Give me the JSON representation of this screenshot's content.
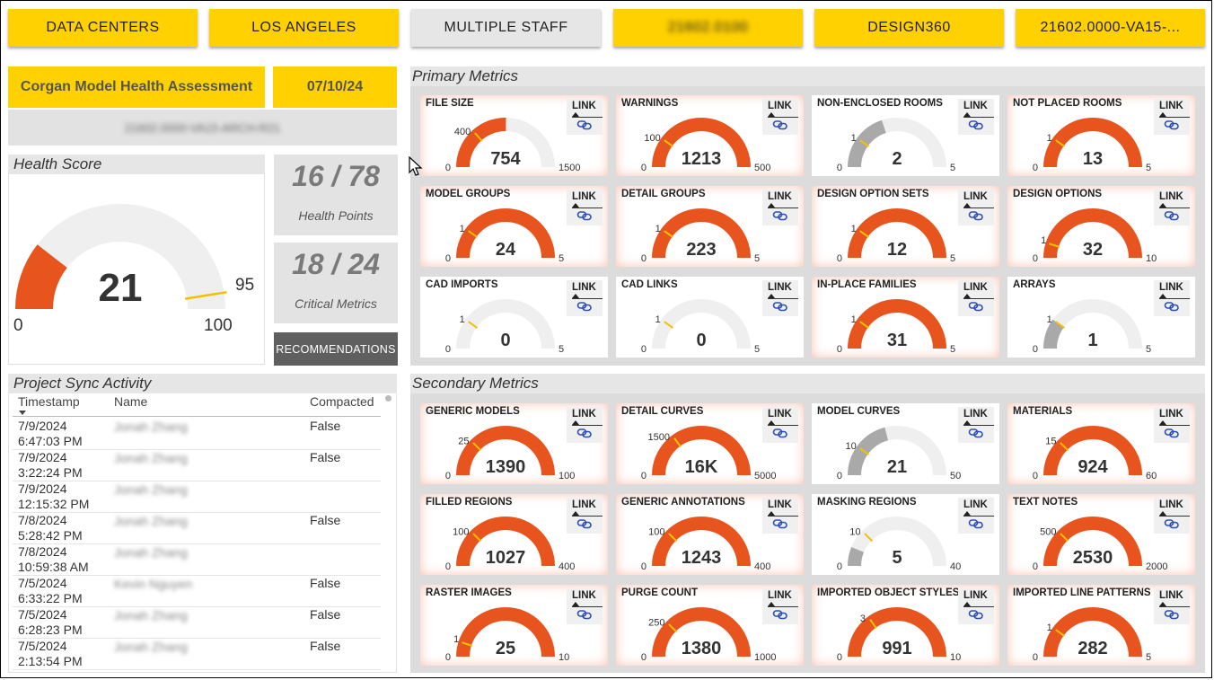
{
  "topbar": [
    "DATA CENTERS",
    "LOS ANGELES",
    "MULTIPLE STAFF",
    "21602.0100",
    "DESIGN360",
    "21602.0000-VA15-..."
  ],
  "header": {
    "title": "Corgan Model Health Assessment",
    "date": "07/10/24",
    "model_name": "21602.0000-VA15-ARCH-R21"
  },
  "health": {
    "title": "Health Score",
    "score": 21,
    "min": "0",
    "max": "100",
    "target": "95",
    "target_value": 95,
    "score_value": 21,
    "health_points": "16 / 78",
    "health_points_label": "Health Points",
    "critical": "18 / 24",
    "critical_label": "Critical Metrics",
    "recommendations": "RECOMMENDATIONS"
  },
  "sync": {
    "title": "Project Sync Activity",
    "columns": [
      "Timestamp",
      "Name",
      "Compacted"
    ],
    "rows": [
      {
        "date": "7/9/2024",
        "time": "6:47:03 PM",
        "name": "Jonah Zhang",
        "compacted": "False"
      },
      {
        "date": "7/9/2024",
        "time": "3:22:24 PM",
        "name": "Jonah Zhang",
        "compacted": "False"
      },
      {
        "date": "7/9/2024",
        "time": "12:15:32 PM",
        "name": "Jonah Zhang",
        "compacted": ""
      },
      {
        "date": "7/8/2024",
        "time": "5:28:42 PM",
        "name": "Jonah Zhang",
        "compacted": "False"
      },
      {
        "date": "7/8/2024",
        "time": "10:59:38 AM",
        "name": "Jonah Zhang",
        "compacted": ""
      },
      {
        "date": "7/5/2024",
        "time": "6:33:22 PM",
        "name": "Kevin Nguyen",
        "compacted": "False"
      },
      {
        "date": "7/5/2024",
        "time": "6:28:23 PM",
        "name": "Jonah Zhang",
        "compacted": "False"
      },
      {
        "date": "7/5/2024",
        "time": "2:13:54 PM",
        "name": "Jonah Zhang",
        "compacted": "False"
      }
    ]
  },
  "link_label": "LINK",
  "primary": {
    "title": "Primary Metrics",
    "metrics": [
      {
        "name": "FILE SIZE",
        "value": "754",
        "v": 754,
        "max": "1500",
        "m": 1500,
        "target": "400",
        "t": 400,
        "status": "fail"
      },
      {
        "name": "WARNINGS",
        "value": "1213",
        "v": 1213,
        "max": "500",
        "m": 500,
        "target": "100",
        "t": 100,
        "status": "fail"
      },
      {
        "name": "NON-ENCLOSED ROOMS",
        "value": "2",
        "v": 2,
        "max": "5",
        "m": 5,
        "target": "1",
        "t": 1,
        "status": "warn"
      },
      {
        "name": "NOT PLACED ROOMS",
        "value": "13",
        "v": 13,
        "max": "5",
        "m": 5,
        "target": "1",
        "t": 1,
        "status": "fail"
      },
      {
        "name": "MODEL GROUPS",
        "value": "24",
        "v": 24,
        "max": "5",
        "m": 5,
        "target": "1",
        "t": 1,
        "status": "fail"
      },
      {
        "name": "DETAIL GROUPS",
        "value": "223",
        "v": 223,
        "max": "5",
        "m": 5,
        "target": "1",
        "t": 1,
        "status": "fail"
      },
      {
        "name": "DESIGN OPTION SETS",
        "value": "12",
        "v": 12,
        "max": "5",
        "m": 5,
        "target": "1",
        "t": 1,
        "status": "fail"
      },
      {
        "name": "DESIGN OPTIONS",
        "value": "32",
        "v": 32,
        "max": "10",
        "m": 10,
        "target": "1",
        "t": 1,
        "status": "fail"
      },
      {
        "name": "CAD IMPORTS",
        "value": "0",
        "v": 0,
        "max": "5",
        "m": 5,
        "target": "1",
        "t": 1,
        "status": "ok"
      },
      {
        "name": "CAD LINKS",
        "value": "0",
        "v": 0,
        "max": "5",
        "m": 5,
        "target": "1",
        "t": 1,
        "status": "ok"
      },
      {
        "name": "IN-PLACE FAMILIES",
        "value": "31",
        "v": 31,
        "max": "5",
        "m": 5,
        "target": "1",
        "t": 1,
        "status": "fail"
      },
      {
        "name": "ARRAYS",
        "value": "1",
        "v": 1,
        "max": "5",
        "m": 5,
        "target": "1",
        "t": 1,
        "status": "warn"
      }
    ]
  },
  "secondary": {
    "title": "Secondary Metrics",
    "metrics": [
      {
        "name": "GENERIC MODELS",
        "value": "1390",
        "v": 1390,
        "max": "100",
        "m": 100,
        "target": "25",
        "t": 25,
        "status": "fail"
      },
      {
        "name": "DETAIL CURVES",
        "value": "16K",
        "v": 16000,
        "max": "5000",
        "m": 5000,
        "target": "1500",
        "t": 1500,
        "status": "fail"
      },
      {
        "name": "MODEL CURVES",
        "value": "21",
        "v": 21,
        "max": "50",
        "m": 50,
        "target": "10",
        "t": 10,
        "status": "warn"
      },
      {
        "name": "MATERIALS",
        "value": "924",
        "v": 924,
        "max": "60",
        "m": 60,
        "target": "15",
        "t": 15,
        "status": "fail"
      },
      {
        "name": "FILLED REGIONS",
        "value": "1027",
        "v": 1027,
        "max": "400",
        "m": 400,
        "target": "100",
        "t": 100,
        "status": "fail"
      },
      {
        "name": "GENERIC ANNOTATIONS",
        "value": "1243",
        "v": 1243,
        "max": "400",
        "m": 400,
        "target": "100",
        "t": 100,
        "status": "fail"
      },
      {
        "name": "MASKING REGIONS",
        "value": "5",
        "v": 5,
        "max": "40",
        "m": 40,
        "target": "10",
        "t": 10,
        "status": "warn"
      },
      {
        "name": "TEXT NOTES",
        "value": "2530",
        "v": 2530,
        "max": "2000",
        "m": 2000,
        "target": "500",
        "t": 500,
        "status": "fail"
      },
      {
        "name": "RASTER IMAGES",
        "value": "25",
        "v": 25,
        "max": "10",
        "m": 10,
        "target": "1",
        "t": 1,
        "status": "fail"
      },
      {
        "name": "PURGE COUNT",
        "value": "1380",
        "v": 1380,
        "max": "1000",
        "m": 1000,
        "target": "250",
        "t": 250,
        "status": "fail"
      },
      {
        "name": "IMPORTED OBJECT STYLES",
        "value": "991",
        "v": 991,
        "max": "10",
        "m": 10,
        "target": "3",
        "t": 3,
        "status": "fail"
      },
      {
        "name": "IMPORTED LINE PATTERNS",
        "value": "282",
        "v": 282,
        "max": "5",
        "m": 5,
        "target": "1",
        "t": 1,
        "status": "fail"
      }
    ]
  },
  "colors": {
    "yellow": "#FFD100",
    "fail": "#E8541E",
    "warn": "#A9A9A9",
    "track": "#EFEFEF",
    "target": "#F2C200",
    "panel": "#DCDCDC"
  }
}
